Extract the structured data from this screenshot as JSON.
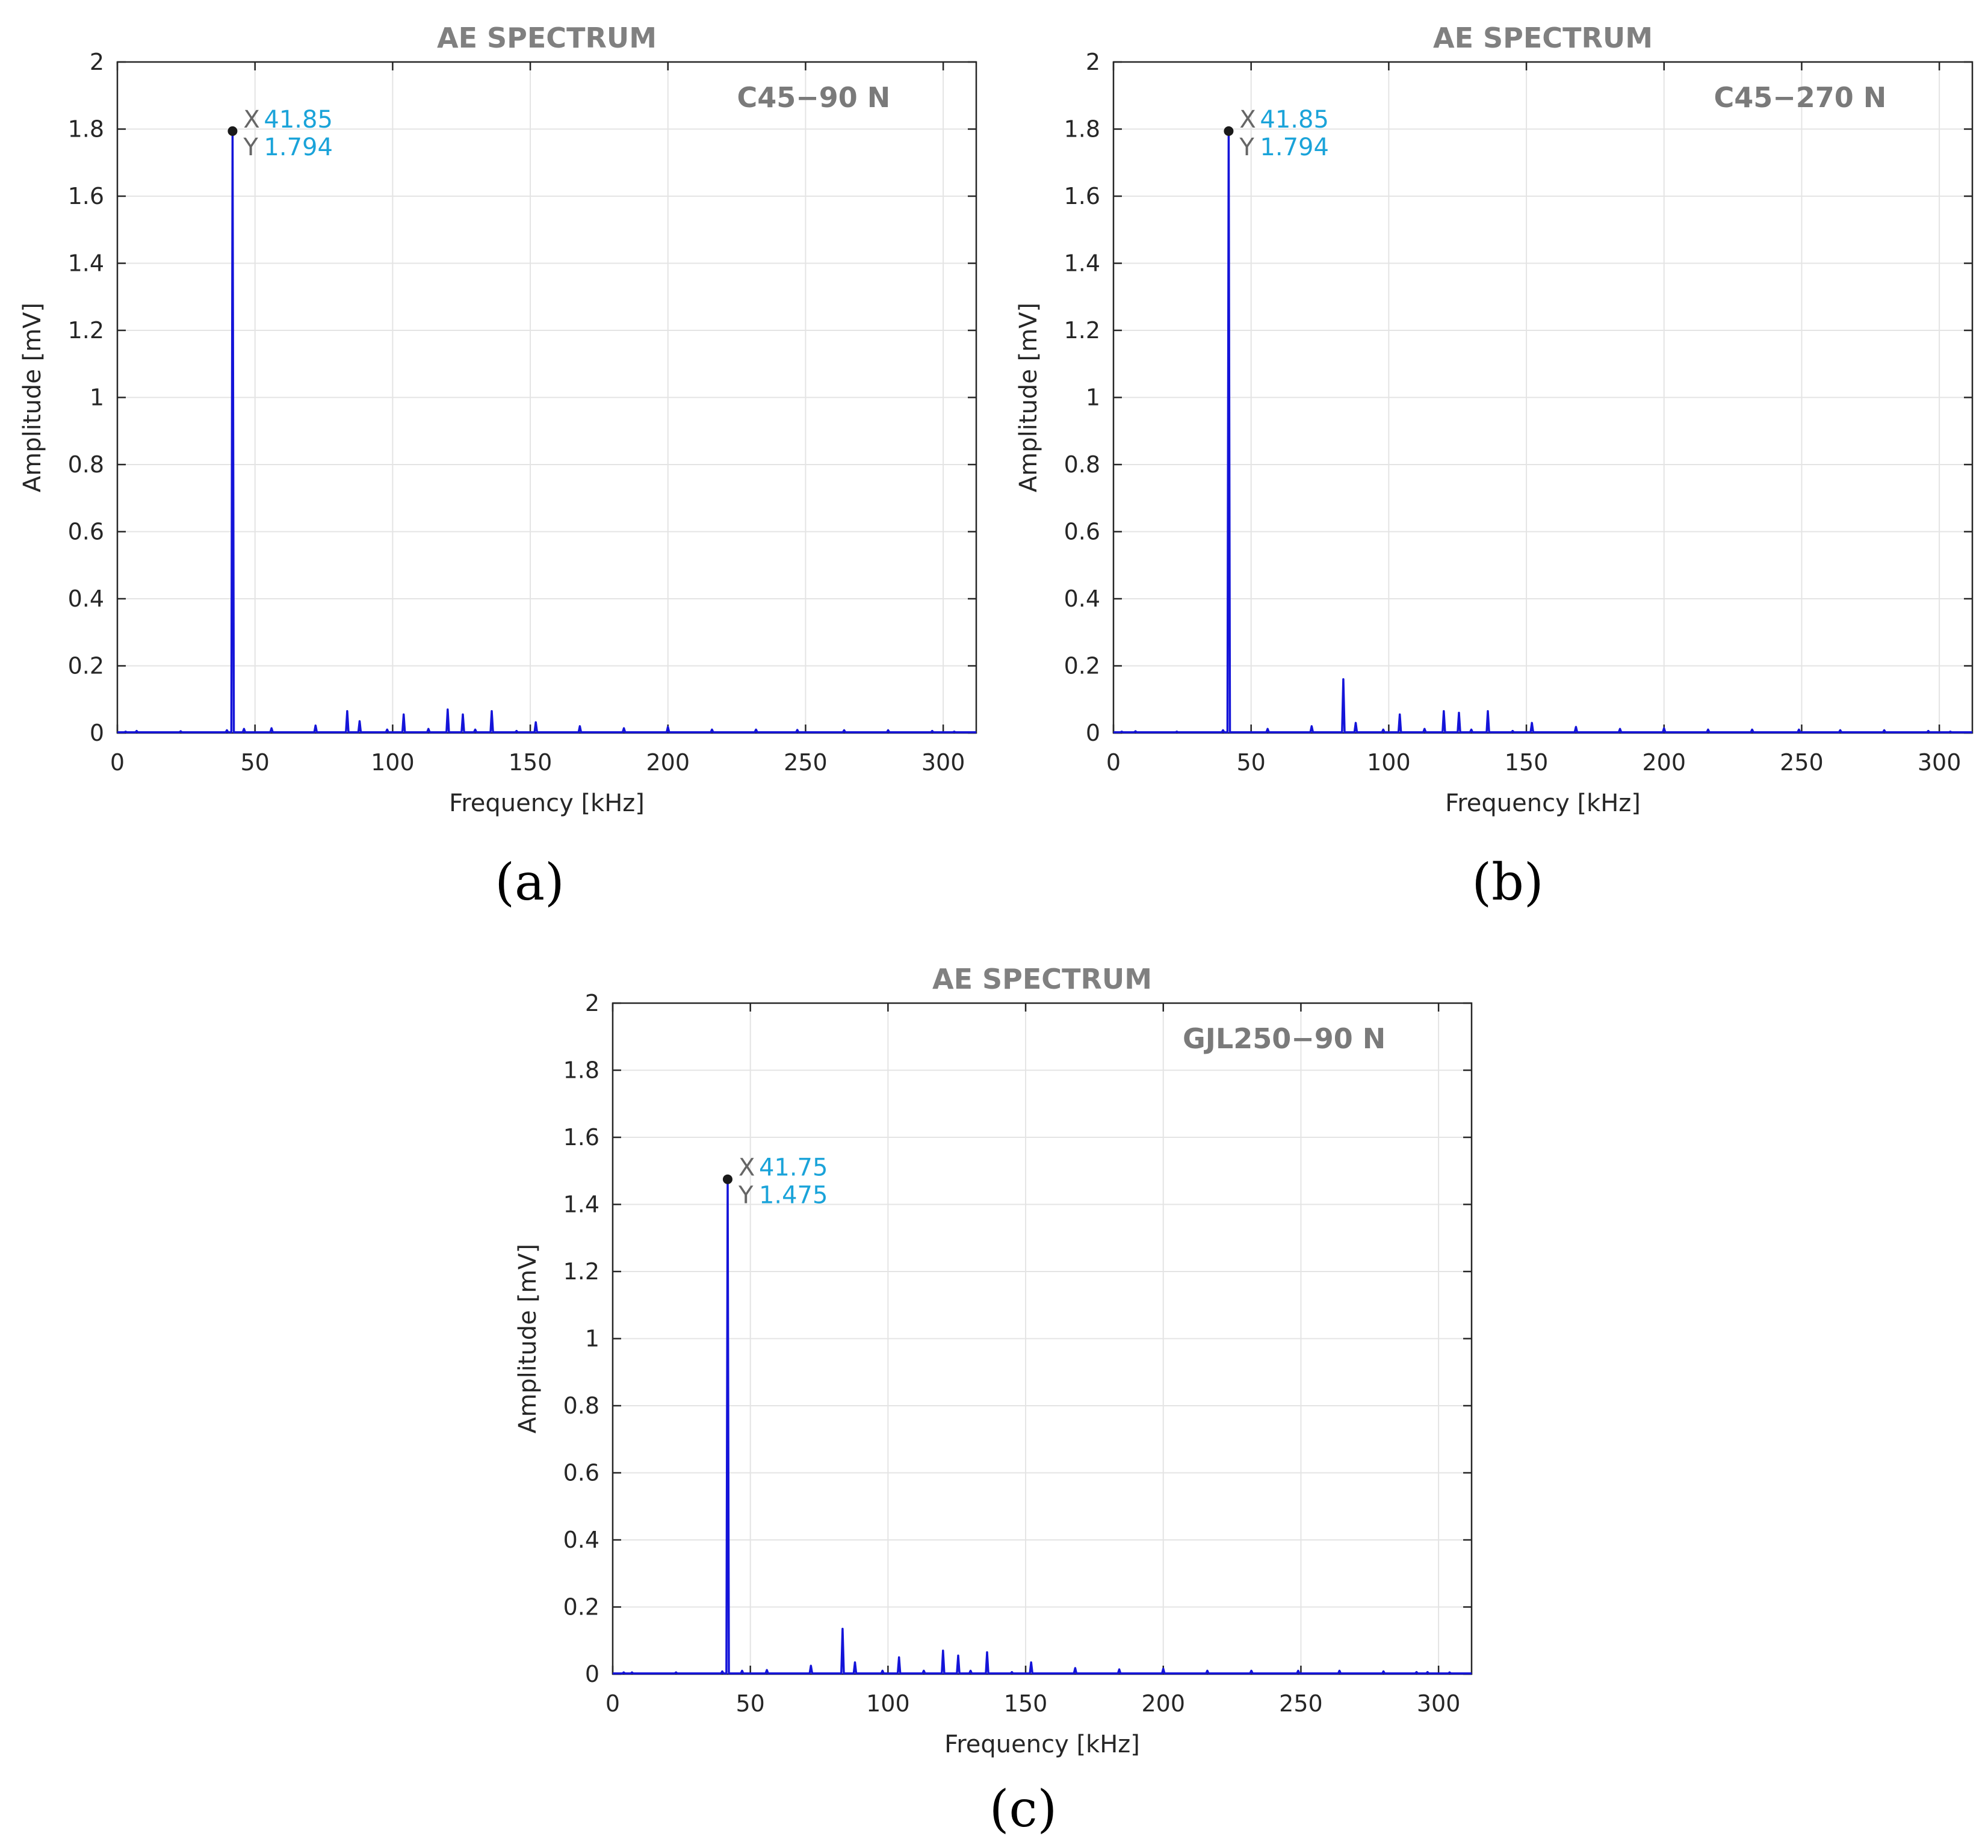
{
  "chart_data": [
    {
      "type": "line",
      "title": "AE SPECTRUM",
      "annotation": "C45−90 N",
      "xlabel": "Frequency [kHz]",
      "ylabel": "Amplitude [mV]",
      "xlim": [
        0,
        312
      ],
      "ylim": [
        0,
        2
      ],
      "xticks": [
        "0",
        "50",
        "100",
        "150",
        "200",
        "250",
        "300"
      ],
      "yticks": [
        "0",
        "0.2",
        "0.4",
        "0.6",
        "0.8",
        "1",
        "1.2",
        "1.4",
        "1.6",
        "1.8",
        "2"
      ],
      "grid": true,
      "panel_label": "(a)",
      "datatip": {
        "x_key": "X",
        "y_key": "Y",
        "x": "41.85",
        "y": "1.794"
      },
      "peak": {
        "x": 41.85,
        "y": 1.794
      },
      "spikes": [
        [
          3,
          0.004
        ],
        [
          7,
          0.006
        ],
        [
          23,
          0.005
        ],
        [
          39.8,
          0.008
        ],
        [
          46,
          0.012
        ],
        [
          56,
          0.014
        ],
        [
          72,
          0.022
        ],
        [
          83.5,
          0.065
        ],
        [
          88,
          0.035
        ],
        [
          98,
          0.01
        ],
        [
          104,
          0.055
        ],
        [
          113,
          0.012
        ],
        [
          120,
          0.07
        ],
        [
          125.5,
          0.055
        ],
        [
          130,
          0.01
        ],
        [
          136,
          0.065
        ],
        [
          145,
          0.006
        ],
        [
          152,
          0.032
        ],
        [
          168,
          0.02
        ],
        [
          184,
          0.014
        ],
        [
          200,
          0.018
        ],
        [
          216,
          0.01
        ],
        [
          232,
          0.01
        ],
        [
          247,
          0.009
        ],
        [
          264,
          0.008
        ],
        [
          280,
          0.008
        ],
        [
          296,
          0.006
        ],
        [
          304,
          0.004
        ]
      ]
    },
    {
      "type": "line",
      "title": "AE SPECTRUM",
      "annotation": "C45−270 N",
      "xlabel": "Frequency [kHz]",
      "ylabel": "Amplitude [mV]",
      "xlim": [
        0,
        312
      ],
      "ylim": [
        0,
        2
      ],
      "xticks": [
        "0",
        "50",
        "100",
        "150",
        "200",
        "250",
        "300"
      ],
      "yticks": [
        "0",
        "0.2",
        "0.4",
        "0.6",
        "0.8",
        "1",
        "1.2",
        "1.4",
        "1.6",
        "1.8",
        "2"
      ],
      "grid": true,
      "panel_label": "(b)",
      "datatip": {
        "x_key": "X",
        "y_key": "Y",
        "x": "41.85",
        "y": "1.794"
      },
      "peak": {
        "x": 41.85,
        "y": 1.794
      },
      "spikes": [
        [
          3,
          0.004
        ],
        [
          8,
          0.005
        ],
        [
          23,
          0.004
        ],
        [
          39.8,
          0.008
        ],
        [
          56,
          0.012
        ],
        [
          72,
          0.02
        ],
        [
          83.5,
          0.16
        ],
        [
          88,
          0.03
        ],
        [
          98,
          0.01
        ],
        [
          104,
          0.055
        ],
        [
          113,
          0.012
        ],
        [
          120,
          0.065
        ],
        [
          125.5,
          0.06
        ],
        [
          130,
          0.01
        ],
        [
          136,
          0.065
        ],
        [
          145,
          0.006
        ],
        [
          152,
          0.03
        ],
        [
          168,
          0.018
        ],
        [
          184,
          0.012
        ],
        [
          200,
          0.014
        ],
        [
          216,
          0.01
        ],
        [
          232,
          0.01
        ],
        [
          249,
          0.01
        ],
        [
          264,
          0.008
        ],
        [
          280,
          0.008
        ],
        [
          296,
          0.006
        ],
        [
          304,
          0.004
        ]
      ]
    },
    {
      "type": "line",
      "title": "AE SPECTRUM",
      "annotation": "GJL250−90 N",
      "xlabel": "Frequency [kHz]",
      "ylabel": "Amplitude [mV]",
      "xlim": [
        0,
        312
      ],
      "ylim": [
        0,
        2
      ],
      "xticks": [
        "0",
        "50",
        "100",
        "150",
        "200",
        "250",
        "300"
      ],
      "yticks": [
        "0",
        "0.2",
        "0.4",
        "0.6",
        "0.8",
        "1",
        "1.2",
        "1.4",
        "1.6",
        "1.8",
        "2"
      ],
      "grid": true,
      "panel_label": "(c)",
      "datatip": {
        "x_key": "X",
        "y_key": "Y",
        "x": "41.75",
        "y": "1.475"
      },
      "peak": {
        "x": 41.75,
        "y": 1.475
      },
      "spikes": [
        [
          4,
          0.005
        ],
        [
          7,
          0.005
        ],
        [
          23,
          0.005
        ],
        [
          39.8,
          0.008
        ],
        [
          47,
          0.01
        ],
        [
          56,
          0.012
        ],
        [
          72,
          0.025
        ],
        [
          83.5,
          0.135
        ],
        [
          88,
          0.035
        ],
        [
          98,
          0.01
        ],
        [
          104,
          0.05
        ],
        [
          113,
          0.01
        ],
        [
          120,
          0.07
        ],
        [
          125.5,
          0.055
        ],
        [
          130,
          0.01
        ],
        [
          136,
          0.065
        ],
        [
          145,
          0.006
        ],
        [
          152,
          0.035
        ],
        [
          168,
          0.018
        ],
        [
          184,
          0.014
        ],
        [
          200,
          0.016
        ],
        [
          216,
          0.01
        ],
        [
          232,
          0.01
        ],
        [
          249,
          0.01
        ],
        [
          264,
          0.01
        ],
        [
          280,
          0.008
        ],
        [
          292,
          0.006
        ],
        [
          296,
          0.006
        ],
        [
          304,
          0.005
        ]
      ]
    }
  ]
}
